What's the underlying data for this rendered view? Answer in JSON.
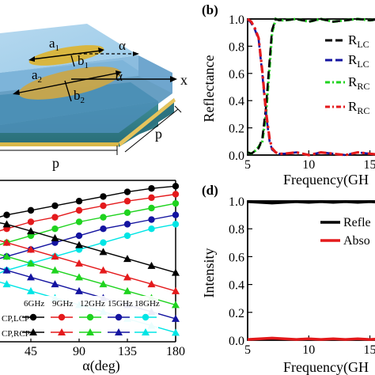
{
  "figure": {
    "panel_b_label": "(b)",
    "panel_d_label": "(d)",
    "schematic": {
      "a1": "a",
      "a1_sub": "1",
      "b1": "b",
      "b1_sub": "1",
      "a2": "a",
      "a2_sub": "2",
      "b2": "b",
      "b2_sub": "2",
      "alpha_top": "α",
      "alpha_bottom": "α",
      "x_axis": "x",
      "p_side": "p",
      "p_bottom": "p"
    }
  },
  "colors": {
    "black": "#000000",
    "red": "#e41a1c",
    "green": "#1fd31f",
    "blue": "#1414a0",
    "cyan": "#00e5e5",
    "substrate_top": "#2f7d88",
    "layer_top": "#8fc8e8",
    "gold": "#d9b84a"
  },
  "chart_data": [
    {
      "id": "c",
      "type": "line",
      "xlabel": "α(deg)",
      "ylabel": "",
      "xlim": [
        0,
        180
      ],
      "xticks": [
        45,
        90,
        135,
        180
      ],
      "x": [
        0,
        22.5,
        45,
        67.5,
        90,
        112.5,
        135,
        157.5,
        180
      ],
      "legend": {
        "frequency_headers": [
          "6GHz",
          "9GHz",
          "12GHz",
          "15GHz",
          "18GHz"
        ],
        "row1_label": "CP,LCP",
        "row2_label": "CP,RCP"
      },
      "series": [
        {
          "color": "black",
          "marker": "circle",
          "values": [
            0.82,
            0.85,
            0.87,
            0.89,
            0.91,
            0.93,
            0.95,
            0.965,
            0.975
          ]
        },
        {
          "color": "red",
          "marker": "circle",
          "values": [
            0.76,
            0.79,
            0.82,
            0.84,
            0.87,
            0.89,
            0.91,
            0.925,
            0.94
          ]
        },
        {
          "color": "green",
          "marker": "circle",
          "values": [
            0.7,
            0.73,
            0.76,
            0.79,
            0.82,
            0.84,
            0.86,
            0.88,
            0.9
          ]
        },
        {
          "color": "blue",
          "marker": "circle",
          "values": [
            0.64,
            0.67,
            0.7,
            0.73,
            0.76,
            0.79,
            0.81,
            0.83,
            0.85
          ]
        },
        {
          "color": "cyan",
          "marker": "circle",
          "values": [
            0.57,
            0.61,
            0.64,
            0.67,
            0.7,
            0.73,
            0.76,
            0.79,
            0.81
          ]
        },
        {
          "color": "black",
          "marker": "triangle",
          "values": [
            0.83,
            0.81,
            0.78,
            0.75,
            0.72,
            0.69,
            0.66,
            0.63,
            0.6
          ]
        },
        {
          "color": "red",
          "marker": "triangle",
          "values": [
            0.76,
            0.73,
            0.7,
            0.67,
            0.64,
            0.61,
            0.58,
            0.55,
            0.52
          ]
        },
        {
          "color": "green",
          "marker": "triangle",
          "values": [
            0.7,
            0.67,
            0.64,
            0.61,
            0.58,
            0.55,
            0.52,
            0.49,
            0.46
          ]
        },
        {
          "color": "blue",
          "marker": "triangle",
          "values": [
            0.64,
            0.61,
            0.58,
            0.55,
            0.52,
            0.49,
            0.46,
            0.43,
            0.4
          ]
        },
        {
          "color": "cyan",
          "marker": "triangle",
          "values": [
            0.58,
            0.55,
            0.52,
            0.49,
            0.46,
            0.43,
            0.4,
            0.37,
            0.34
          ]
        }
      ]
    },
    {
      "id": "b",
      "type": "line",
      "xlabel": "Frequency(GH",
      "ylabel": "Reflectance",
      "xlim": [
        5,
        16
      ],
      "ylim": [
        0,
        1
      ],
      "xticks": [
        5,
        10,
        15
      ],
      "yticks": [
        "0.0",
        "0.2",
        "0.4",
        "0.6",
        "0.8",
        "1.0"
      ],
      "legend": [
        {
          "name_main": "R",
          "name_sub": "LC",
          "color": "black",
          "dash": "long-dash"
        },
        {
          "name_main": "R",
          "name_sub": "LC",
          "color": "blue",
          "dash": "long-dash"
        },
        {
          "name_main": "R",
          "name_sub": "RC",
          "color": "green",
          "dash": "dash-dot"
        },
        {
          "name_main": "R",
          "name_sub": "RC",
          "color": "red",
          "dash": "dash-dot"
        }
      ],
      "series": [
        {
          "color": "green",
          "x": [
            5,
            5.3,
            5.6,
            5.9,
            6.2,
            6.5,
            6.8,
            7.0,
            7.3,
            7.6,
            8,
            9,
            10,
            11,
            12,
            13,
            14,
            15,
            16
          ],
          "y": [
            0.02,
            0.01,
            0.03,
            0.06,
            0.1,
            0.3,
            0.65,
            0.9,
            1.0,
            0.99,
            0.99,
            1.0,
            0.98,
            1.0,
            0.98,
            0.99,
            1.0,
            0.99,
            1.0
          ]
        },
        {
          "color": "black",
          "x": [
            5,
            5.3,
            5.6,
            5.9,
            6.2,
            6.5,
            6.8,
            7.0,
            7.3,
            7.6,
            8,
            9,
            10,
            11,
            12,
            13,
            14,
            15,
            16
          ],
          "y": [
            0.02,
            0.01,
            0.03,
            0.05,
            0.12,
            0.35,
            0.7,
            0.92,
            1.0,
            0.99,
            0.99,
            1.0,
            0.98,
            1.0,
            0.98,
            0.99,
            1.0,
            0.99,
            1.0
          ]
        },
        {
          "color": "blue",
          "x": [
            5,
            5.3,
            5.6,
            5.9,
            6.2,
            6.5,
            6.8,
            7.0,
            7.3,
            7.6,
            8,
            9,
            10,
            11,
            12,
            13,
            14,
            15,
            16
          ],
          "y": [
            1.0,
            0.97,
            0.92,
            0.85,
            0.6,
            0.3,
            0.1,
            0.04,
            0.02,
            0.01,
            0.01,
            0.02,
            0.0,
            0.02,
            0.01,
            0.0,
            0.02,
            0.01,
            0.0
          ]
        },
        {
          "color": "red",
          "x": [
            5,
            5.3,
            5.6,
            5.9,
            6.2,
            6.5,
            6.8,
            7.0,
            7.3,
            7.6,
            8,
            9,
            10,
            11,
            12,
            13,
            14,
            15,
            16
          ],
          "y": [
            1.0,
            0.98,
            0.93,
            0.86,
            0.62,
            0.32,
            0.12,
            0.05,
            0.02,
            0.01,
            0.01,
            0.02,
            0.0,
            0.02,
            0.01,
            0.0,
            0.02,
            0.01,
            0.0
          ]
        }
      ]
    },
    {
      "id": "d",
      "type": "line",
      "xlabel": "Frequency(GH",
      "ylabel": "Intensity",
      "xlim": [
        5,
        16
      ],
      "ylim": [
        0,
        1
      ],
      "xticks": [
        5,
        10,
        15
      ],
      "yticks": [
        "0.0",
        "0.2",
        "0.4",
        "0.6",
        "0.8",
        "1.0"
      ],
      "legend": [
        {
          "name": "Refle",
          "color": "black"
        },
        {
          "name": "Abso",
          "color": "red"
        }
      ],
      "series": [
        {
          "color": "black",
          "x": [
            5,
            6,
            7,
            8,
            9,
            10,
            11,
            12,
            13,
            14,
            15,
            16
          ],
          "y": [
            0.995,
            0.99,
            0.985,
            0.99,
            0.995,
            0.99,
            0.995,
            0.99,
            0.995,
            0.99,
            0.995,
            0.99
          ]
        },
        {
          "color": "red",
          "x": [
            5,
            6,
            7,
            8,
            9,
            10,
            11,
            12,
            13,
            14,
            15,
            16
          ],
          "y": [
            0.005,
            0.01,
            0.015,
            0.01,
            0.005,
            0.01,
            0.005,
            0.01,
            0.005,
            0.01,
            0.005,
            0.01
          ]
        }
      ]
    }
  ]
}
